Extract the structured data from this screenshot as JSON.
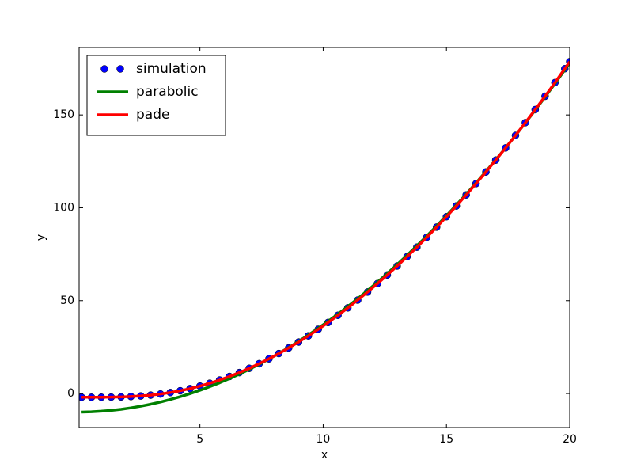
{
  "chart_data": {
    "type": "line",
    "x_label": "x",
    "y_label": "y",
    "x": [
      0.2,
      0.6,
      1.0,
      1.4,
      1.8,
      2.2,
      2.6,
      3.0,
      3.4,
      3.8,
      4.2,
      4.6,
      5.0,
      5.4,
      5.8,
      6.2,
      6.6,
      7.0,
      7.4,
      7.8,
      8.2,
      8.6,
      9.0,
      9.4,
      9.8,
      10.2,
      10.6,
      11.0,
      11.4,
      11.8,
      12.2,
      12.6,
      13.0,
      13.4,
      13.8,
      14.2,
      14.6,
      15.0,
      15.4,
      15.8,
      16.2,
      16.6,
      17.0,
      17.4,
      17.8,
      18.2,
      18.6,
      19.0,
      19.4,
      19.8,
      20.0
    ],
    "series": [
      {
        "name": "simulation",
        "color": "#0000ff",
        "style": "markers",
        "values": [
          -2.0,
          -2.0,
          -1.98,
          -1.93,
          -1.82,
          -1.62,
          -1.31,
          -0.86,
          -0.25,
          0.54,
          1.5,
          2.66,
          4.0,
          5.54,
          7.26,
          9.18,
          11.28,
          13.57,
          16.05,
          18.7,
          21.53,
          24.53,
          27.71,
          31.06,
          34.58,
          38.26,
          42.12,
          46.14,
          50.32,
          54.66,
          59.17,
          63.84,
          68.67,
          73.66,
          78.8,
          84.11,
          89.58,
          95.2,
          100.98,
          106.92,
          113.02,
          119.27,
          125.68,
          132.24,
          138.96,
          145.84,
          152.87,
          160.06,
          167.4,
          174.9,
          178.7
        ]
      },
      {
        "name": "parabolic",
        "color": "#008000",
        "style": "line",
        "values": [
          -9.98,
          -9.83,
          -9.53,
          -9.08,
          -8.48,
          -7.73,
          -6.82,
          -5.77,
          -4.57,
          -3.21,
          -1.71,
          -0.05,
          1.75,
          3.71,
          5.81,
          8.07,
          10.47,
          13.03,
          15.74,
          18.59,
          21.6,
          24.76,
          28.07,
          31.53,
          35.14,
          38.9,
          42.81,
          46.87,
          51.08,
          55.44,
          59.95,
          64.62,
          69.43,
          74.39,
          79.51,
          84.77,
          90.19,
          95.75,
          101.47,
          107.33,
          113.35,
          119.51,
          125.83,
          132.3,
          138.91,
          145.68,
          152.6,
          159.67,
          166.89,
          174.26,
          178.0
        ]
      },
      {
        "name": "pade",
        "color": "#ff0000",
        "style": "line",
        "values": [
          -2.0,
          -2.0,
          -1.98,
          -1.93,
          -1.82,
          -1.62,
          -1.31,
          -0.86,
          -0.25,
          0.54,
          1.5,
          2.66,
          4.0,
          5.54,
          7.26,
          9.18,
          11.28,
          13.57,
          16.05,
          18.7,
          21.53,
          24.53,
          27.71,
          31.06,
          34.58,
          38.26,
          42.12,
          46.14,
          50.32,
          54.66,
          59.17,
          63.84,
          68.67,
          73.66,
          78.8,
          84.11,
          89.58,
          95.2,
          100.98,
          106.92,
          113.02,
          119.27,
          125.68,
          132.24,
          138.96,
          145.84,
          152.87,
          160.06,
          167.4,
          174.9,
          178.7
        ]
      }
    ],
    "xlim": [
      0.1,
      20
    ],
    "ylim": [
      -18.3,
      186.3
    ],
    "xticks": [
      5,
      10,
      15,
      20
    ],
    "yticks": [
      0,
      50,
      100,
      150
    ],
    "legend": "upper left"
  }
}
